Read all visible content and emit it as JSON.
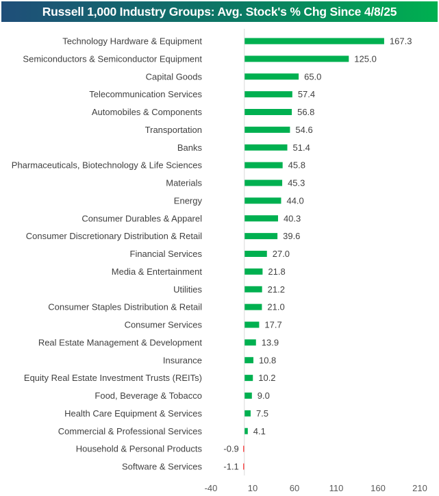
{
  "chart_data": {
    "type": "bar",
    "orientation": "horizontal",
    "title": "Russell 1,000 Industry Groups: Avg. Stock's % Chg Since 4/8/25",
    "xlabel": "",
    "ylabel": "",
    "xlim": [
      -40,
      210
    ],
    "xticks": [
      -40,
      10,
      60,
      110,
      160,
      210
    ],
    "grid": false,
    "legend": "none",
    "categories": [
      "Technology Hardware & Equipment",
      "Semiconductors & Semiconductor Equipment",
      "Capital Goods",
      "Telecommunication Services",
      "Automobiles & Components",
      "Transportation",
      "Banks",
      "Pharmaceuticals, Biotechnology & Life Sciences",
      "Materials",
      "Energy",
      "Consumer Durables & Apparel",
      "Consumer Discretionary Distribution & Retail",
      "Financial Services",
      "Media & Entertainment",
      "Utilities",
      "Consumer Staples Distribution & Retail",
      "Consumer Services",
      "Real Estate Management & Development",
      "Insurance",
      "Equity Real Estate Investment Trusts (REITs)",
      "Food, Beverage & Tobacco",
      "Health Care Equipment & Services",
      "Commercial & Professional Services",
      "Household & Personal Products",
      "Software & Services"
    ],
    "values": [
      167.3,
      125.0,
      65.0,
      57.4,
      56.8,
      54.6,
      51.4,
      45.8,
      45.3,
      44.0,
      40.3,
      39.6,
      27.0,
      21.8,
      21.2,
      21.0,
      17.7,
      13.9,
      10.8,
      10.2,
      9.0,
      7.5,
      4.1,
      -0.9,
      -1.1
    ],
    "value_labels": [
      "167.3",
      "125.0",
      "65.0",
      "57.4",
      "56.8",
      "54.6",
      "51.4",
      "45.8",
      "45.3",
      "44.0",
      "40.3",
      "39.6",
      "27.0",
      "21.8",
      "21.2",
      "21.0",
      "17.7",
      "13.9",
      "10.8",
      "10.2",
      "9.0",
      "7.5",
      "4.1",
      "-0.9",
      "-1.1"
    ],
    "colors": {
      "positive": "#00b050",
      "negative": "#ff0000"
    }
  },
  "colors": {
    "title_gradient_start": "#1f4e79",
    "title_gradient_end": "#00b050",
    "axis_line": "#d9d9d9"
  }
}
